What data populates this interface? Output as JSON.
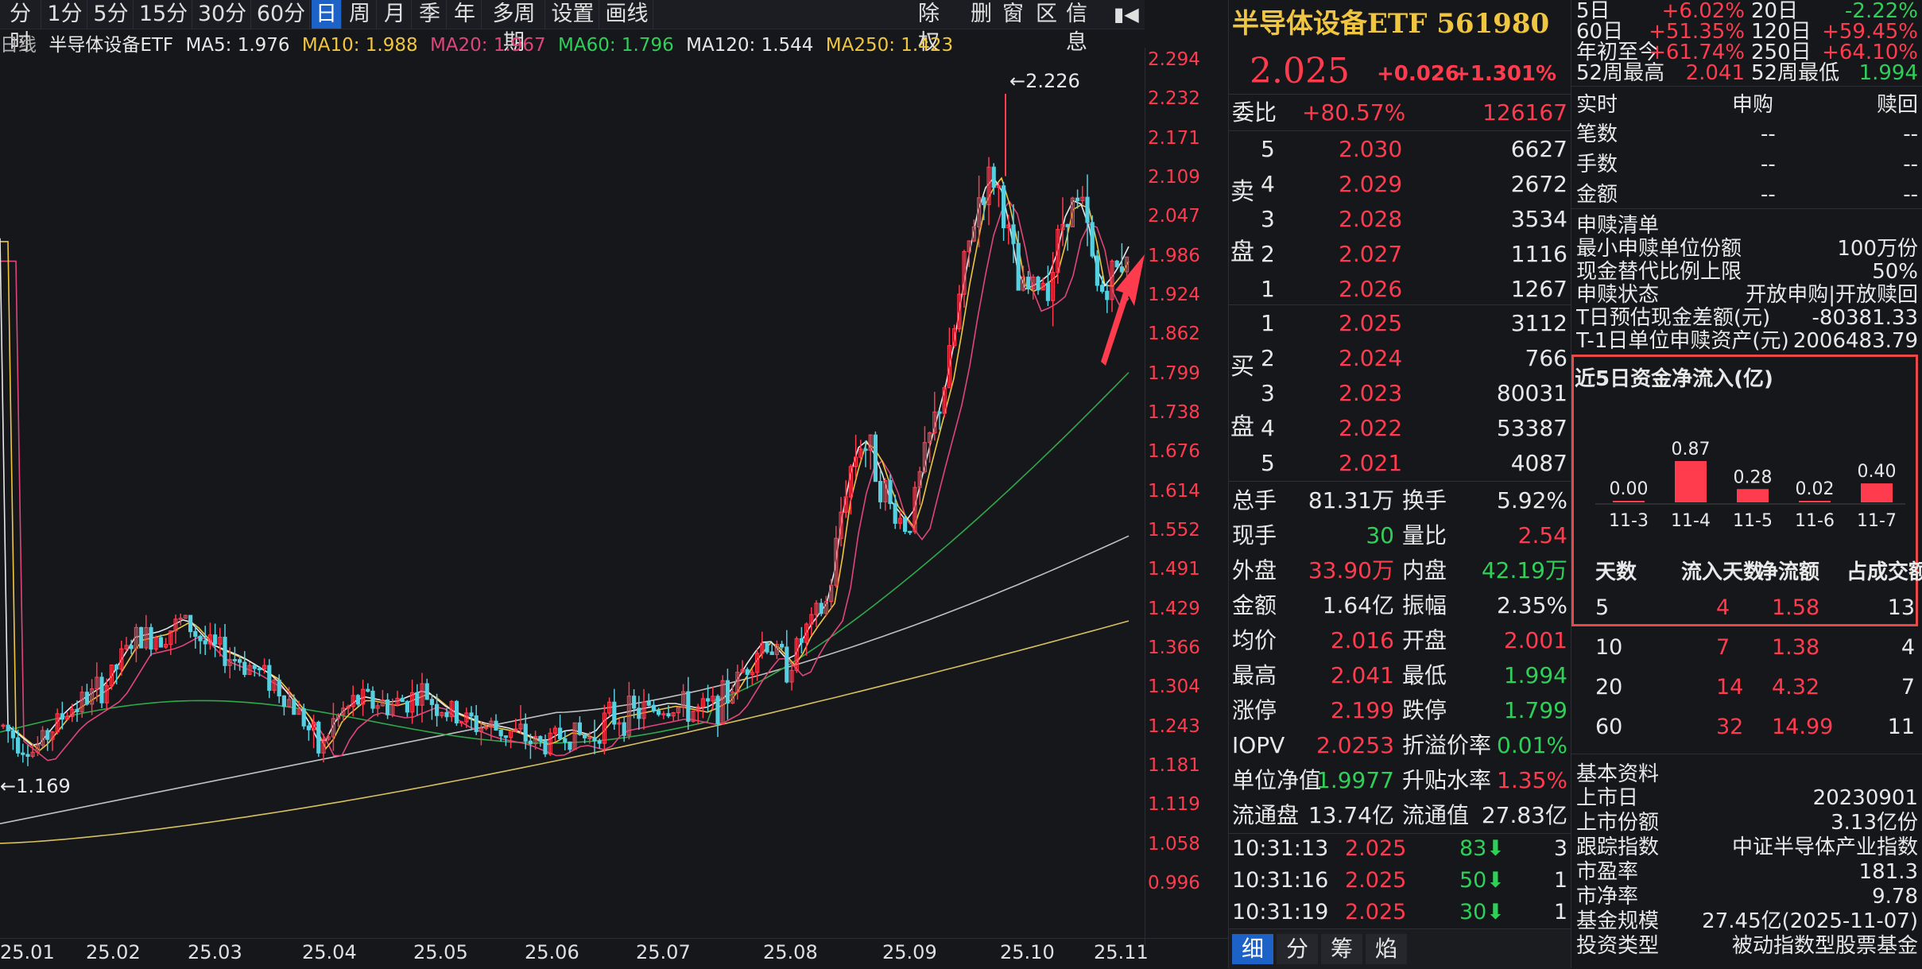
{
  "toolbar": {
    "items": [
      "分时",
      "1分",
      "5分",
      "15分",
      "30分",
      "60分",
      "日",
      "周",
      "月",
      "季",
      "年",
      "多周期",
      "设置",
      "画线"
    ],
    "active": "日",
    "right": [
      "除权",
      "删",
      "窗",
      "区",
      "信息"
    ]
  },
  "ma_line": {
    "prefix": "日线",
    "name": "半导体设备ETF",
    "ma5": "MA5: 1.976",
    "ma10": "MA10: 1.988",
    "ma20": "MA20: 1.967",
    "ma60": "MA60: 1.796",
    "ma120": "MA120: 1.544",
    "ma250": "MA250: 1.423"
  },
  "chart": {
    "y_ticks": [
      "2.294",
      "2.232",
      "2.171",
      "2.109",
      "2.047",
      "1.986",
      "1.924",
      "1.862",
      "1.799",
      "1.738",
      "1.676",
      "1.614",
      "1.552",
      "1.491",
      "1.429",
      "1.366",
      "1.304",
      "1.243",
      "1.181",
      "1.119",
      "1.058",
      "0.996"
    ],
    "x_ticks": [
      "25.01",
      "25.02",
      "25.03",
      "25.04",
      "25.05",
      "25.06",
      "25.07",
      "25.08",
      "25.09",
      "25.10",
      "25.11"
    ],
    "high_label": "2.226",
    "low_label": "1.169",
    "colors": {
      "up": "#ff3b4e",
      "down": "#56d0e0",
      "ma5": "#e8e8e8",
      "ma10": "#f0c640",
      "ma20": "#e0457a",
      "ma60": "#2fa84a",
      "ma120": "#c0c0c0",
      "ma250": "#d8c060"
    }
  },
  "quote": {
    "title": "半导体设备ETF 561980",
    "price": "2.025",
    "change": "+0.026",
    "change_pct": "+1.301%",
    "weibi_label": "委比",
    "weibi_pct": "+80.57%",
    "weibi_num": "126167",
    "sell_label": [
      "卖",
      "盘"
    ],
    "buy_label": [
      "买",
      "盘"
    ],
    "sells": [
      {
        "lvl": "5",
        "price": "2.030",
        "vol": "6627"
      },
      {
        "lvl": "4",
        "price": "2.029",
        "vol": "2672"
      },
      {
        "lvl": "3",
        "price": "2.028",
        "vol": "3534"
      },
      {
        "lvl": "2",
        "price": "2.027",
        "vol": "1116"
      },
      {
        "lvl": "1",
        "price": "2.026",
        "vol": "1267"
      }
    ],
    "buys": [
      {
        "lvl": "1",
        "price": "2.025",
        "vol": "3112"
      },
      {
        "lvl": "2",
        "price": "2.024",
        "vol": "766"
      },
      {
        "lvl": "3",
        "price": "2.023",
        "vol": "80031"
      },
      {
        "lvl": "4",
        "price": "2.022",
        "vol": "53387"
      },
      {
        "lvl": "5",
        "price": "2.021",
        "vol": "4087"
      }
    ],
    "stats": [
      {
        "l1": "总手",
        "v1": "81.31万",
        "c1": "white",
        "l2": "换手",
        "v2": "5.92%",
        "c2": "white"
      },
      {
        "l1": "现手",
        "v1": "30",
        "c1": "green",
        "l2": "量比",
        "v2": "2.54",
        "c2": "red"
      },
      {
        "l1": "外盘",
        "v1": "33.90万",
        "c1": "red",
        "l2": "内盘",
        "v2": "42.19万",
        "c2": "green"
      },
      {
        "l1": "金额",
        "v1": "1.64亿",
        "c1": "white",
        "l2": "振幅",
        "v2": "2.35%",
        "c2": "white"
      },
      {
        "l1": "均价",
        "v1": "2.016",
        "c1": "red",
        "l2": "开盘",
        "v2": "2.001",
        "c2": "red"
      },
      {
        "l1": "最高",
        "v1": "2.041",
        "c1": "red",
        "l2": "最低",
        "v2": "1.994",
        "c2": "green"
      },
      {
        "l1": "涨停",
        "v1": "2.199",
        "c1": "red",
        "l2": "跌停",
        "v2": "1.799",
        "c2": "green"
      },
      {
        "l1": "IOPV",
        "v1": "2.0253",
        "c1": "red",
        "l2": "折溢价率",
        "v2": "0.01%",
        "c2": "green"
      },
      {
        "l1": "单位净值",
        "v1": "1.9977",
        "c1": "green",
        "l2": "升贴水率",
        "v2": "1.35%",
        "c2": "red"
      },
      {
        "l1": "流通盘",
        "v1": "13.74亿",
        "c1": "white",
        "l2": "流通值",
        "v2": "27.83亿",
        "c2": "white"
      }
    ],
    "ticks": [
      {
        "time": "10:31:13",
        "price": "2.025",
        "vol": "83",
        "extra": "3"
      },
      {
        "time": "10:31:16",
        "price": "2.025",
        "vol": "50",
        "extra": "1"
      },
      {
        "time": "10:31:19",
        "price": "2.025",
        "vol": "30",
        "extra": "1"
      }
    ],
    "bottom_tabs": [
      "细",
      "分",
      "筹",
      "焰"
    ]
  },
  "right": {
    "perf": [
      {
        "l1": "5日",
        "v1": "+6.02%",
        "c1": "red",
        "l2": "20日",
        "v2": "-2.22%",
        "c2": "green"
      },
      {
        "l1": "60日",
        "v1": "+51.35%",
        "c1": "red",
        "l2": "120日",
        "v2": "+59.45%",
        "c2": "red"
      },
      {
        "l1": "年初至今",
        "v1": "+61.74%",
        "c1": "red",
        "l2": "250日",
        "v2": "+64.10%",
        "c2": "red"
      },
      {
        "l1": "52周最高",
        "v1": "2.041",
        "c1": "red",
        "l2": "52周最低",
        "v2": "1.994",
        "c2": "green"
      }
    ],
    "sg_head": [
      "实时",
      "申购",
      "赎回"
    ],
    "sg_rows": [
      {
        "l": "笔数",
        "a": "--",
        "b": "--"
      },
      {
        "l": "手数",
        "a": "--",
        "b": "--"
      },
      {
        "l": "金额",
        "a": "--",
        "b": "--"
      }
    ],
    "list_title": "申赎清单",
    "list": [
      {
        "l": "最小申赎单位份额",
        "v": "100万份"
      },
      {
        "l": "现金替代比例上限",
        "v": "50%"
      },
      {
        "l": "申赎状态",
        "v": "开放申购|开放赎回"
      },
      {
        "l": "T日预估现金差额(元)",
        "v": "-80381.33"
      },
      {
        "l": "T-1日单位申赎资产(元)",
        "v": "2006483.79"
      }
    ],
    "flow": {
      "title": "近5日资金净流入(亿)",
      "bars": [
        {
          "date": "11-3",
          "value": 0.0,
          "label": "0.00"
        },
        {
          "date": "11-4",
          "value": 0.87,
          "label": "0.87"
        },
        {
          "date": "11-5",
          "value": 0.28,
          "label": "0.28"
        },
        {
          "date": "11-6",
          "value": 0.02,
          "label": "0.02"
        },
        {
          "date": "11-7",
          "value": 0.4,
          "label": "0.40"
        }
      ],
      "table_head": [
        "天数",
        "流入天数",
        "净流额",
        "占成交额"
      ],
      "table": [
        {
          "d": "5",
          "n": "4",
          "v": "1.58",
          "p": "13"
        },
        {
          "d": "10",
          "n": "7",
          "v": "1.38",
          "p": "4"
        },
        {
          "d": "20",
          "n": "14",
          "v": "4.32",
          "p": "7"
        },
        {
          "d": "60",
          "n": "32",
          "v": "14.99",
          "p": "11"
        }
      ]
    },
    "basic_title": "基本资料",
    "basic": [
      {
        "l": "上市日",
        "v": "20230901"
      },
      {
        "l": "上市份额",
        "v": "3.13亿份"
      },
      {
        "l": "跟踪指数",
        "v": "中证半导体产业指数"
      },
      {
        "l": "市盈率",
        "v": "181.3"
      },
      {
        "l": "市净率",
        "v": "9.78"
      },
      {
        "l": "基金规模",
        "v": "27.45亿(2025-11-07)"
      },
      {
        "l": "投资类型",
        "v": "被动指数型股票基金"
      }
    ]
  }
}
